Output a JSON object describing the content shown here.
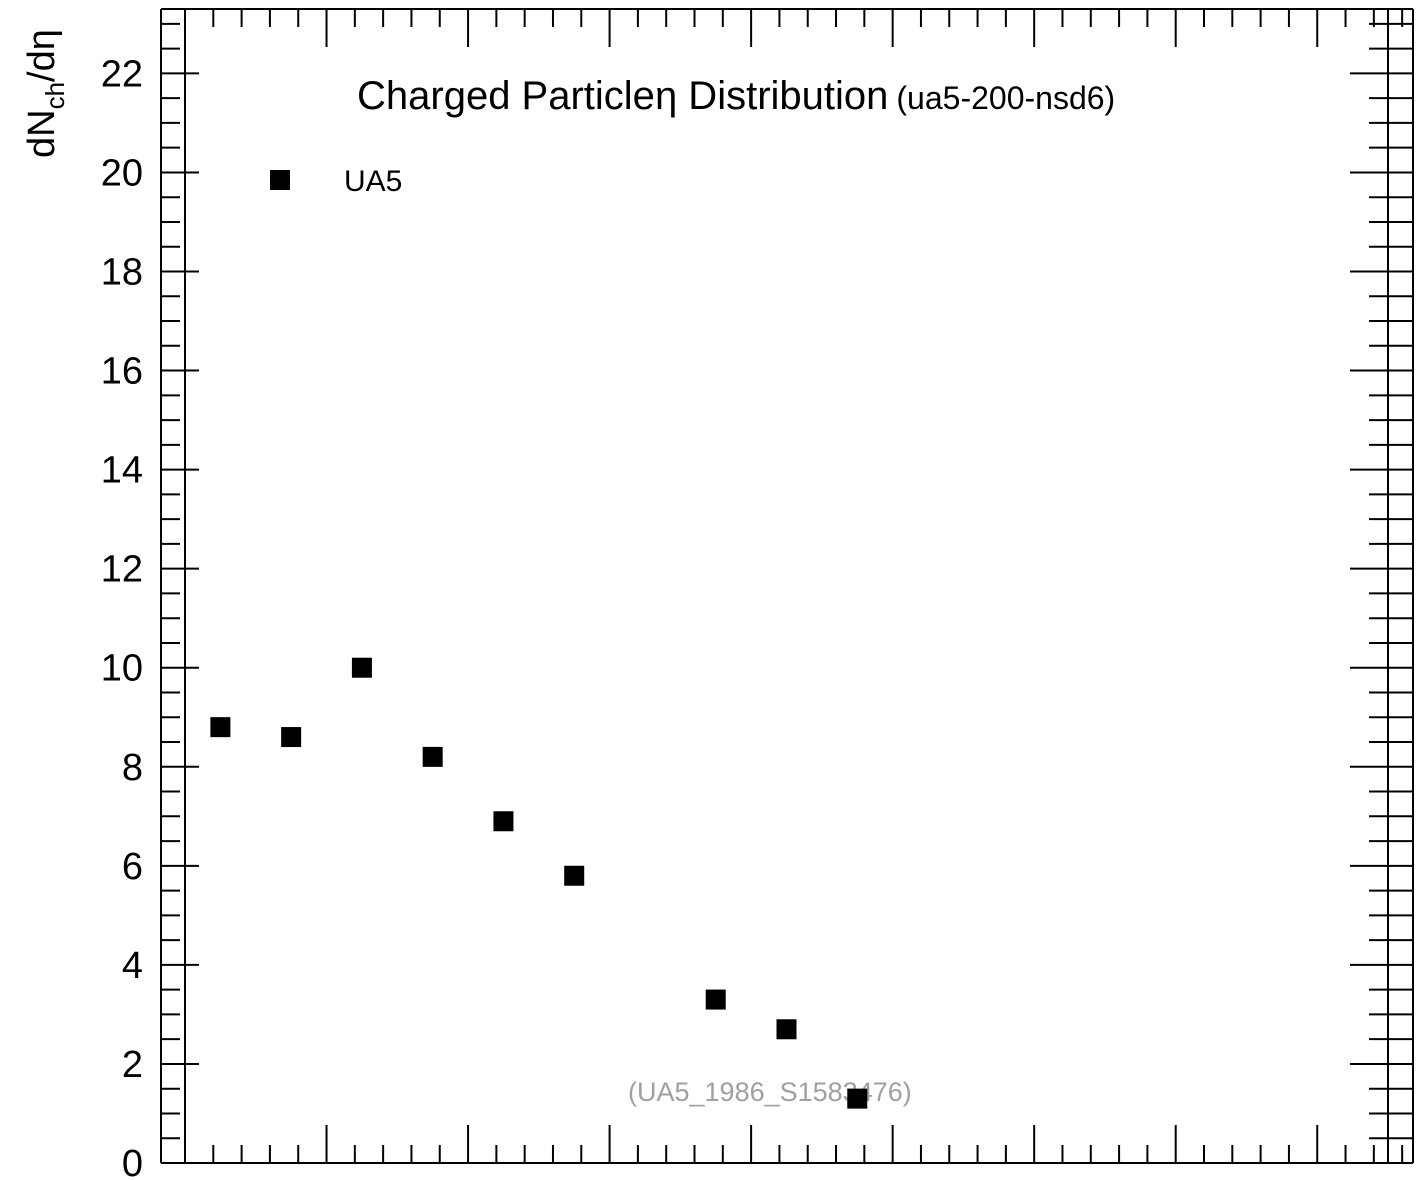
{
  "chart_data": {
    "type": "scatter",
    "title": "Charged Particleη Distribution",
    "title_parts": {
      "main": "Charged Particle",
      "greek": "η",
      "rest": " Distribution",
      "subtitle": "(ua5-200-nsd6)"
    },
    "ylabel": "dN",
    "ylabel_parts": {
      "base": "dN",
      "sub": "ch",
      "rest": "/dη"
    },
    "xlabel": "",
    "ylim": [
      0,
      23.3
    ],
    "xlim": [
      0,
      8.5
    ],
    "y_ticks": [
      "0",
      "2",
      "4",
      "6",
      "8",
      "10",
      "12",
      "14",
      "16",
      "18",
      "20",
      "22"
    ],
    "x_tick_labels": [],
    "legend": {
      "position": "top-left",
      "entries": [
        "UA5"
      ]
    },
    "annotation": "(UA5_1986_S1583476)",
    "grid": false,
    "series": [
      {
        "name": "UA5",
        "marker": "square",
        "color": "#000000",
        "x": [
          0.25,
          0.75,
          1.25,
          1.75,
          2.25,
          2.75,
          3.75,
          4.25,
          4.75
        ],
        "y": [
          8.8,
          8.6,
          10.0,
          8.2,
          6.9,
          5.8,
          3.3,
          2.7,
          1.3
        ]
      }
    ]
  }
}
